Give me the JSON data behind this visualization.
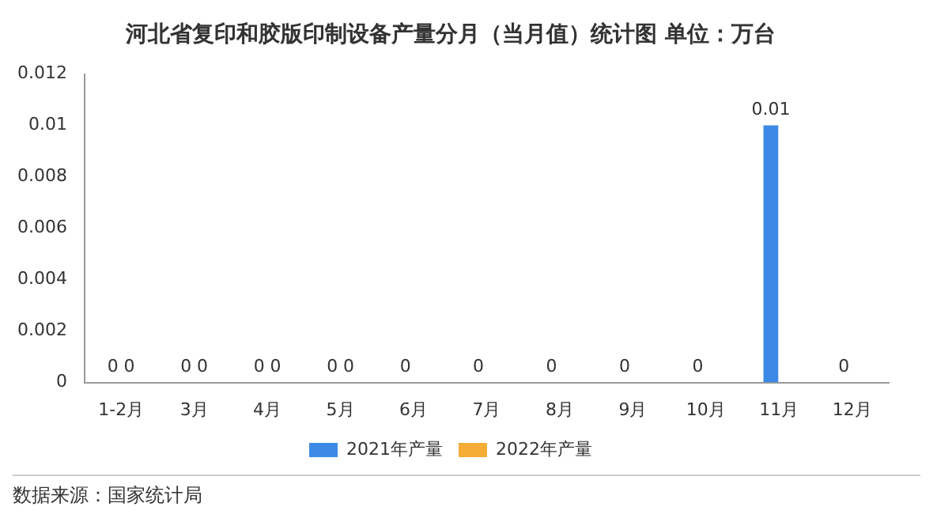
{
  "chart_data": {
    "type": "bar",
    "title": "河北省复印和胶版印制设备产量分月（当月值）统计图 单位：万台",
    "categories": [
      "1-2月",
      "3月",
      "4月",
      "5月",
      "6月",
      "7月",
      "8月",
      "9月",
      "10月",
      "11月",
      "12月"
    ],
    "series": [
      {
        "name": "2021年产量",
        "color": "#3d8ae6",
        "values": [
          0,
          0,
          0,
          0,
          0,
          0,
          0,
          0,
          0,
          0.01,
          0
        ]
      },
      {
        "name": "2022年产量",
        "color": "#f5ad35",
        "values": [
          0,
          0,
          0,
          0,
          null,
          null,
          null,
          null,
          null,
          null,
          null
        ]
      }
    ],
    "ylim": [
      0,
      0.012
    ],
    "yticks": [
      0,
      0.002,
      0.004,
      0.006,
      0.008,
      0.01,
      0.012
    ],
    "grid": false,
    "legend": "bottom",
    "data_labels": true,
    "annotations": [
      "数据来源：国家统计局"
    ]
  }
}
